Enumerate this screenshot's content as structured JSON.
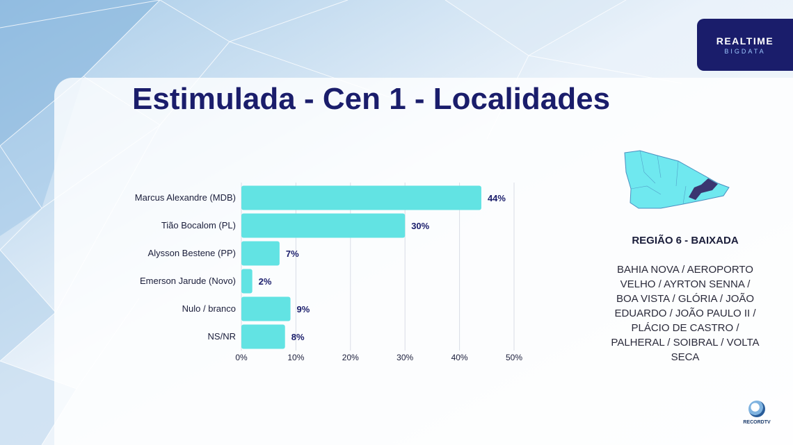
{
  "header": {
    "title": "Estimulada - Cen 1 - Localidades",
    "logo_line1": "REALTIME",
    "logo_line2": "BIGDATA"
  },
  "chart_data": {
    "type": "bar",
    "orientation": "horizontal",
    "categories": [
      "Marcus Alexandre (MDB)",
      "Tião Bocalom (PL)",
      "Alysson Bestene (PP)",
      "Emerson Jarude (Novo)",
      "Nulo / branco",
      "NS/NR"
    ],
    "values": [
      44,
      30,
      7,
      2,
      9,
      8
    ],
    "value_labels": [
      "44%",
      "30%",
      "7%",
      "2%",
      "9%",
      "8%"
    ],
    "xlim": [
      0,
      50
    ],
    "xticks": [
      "0%",
      "10%",
      "20%",
      "30%",
      "40%",
      "50%"
    ],
    "grid": true,
    "bar_color": "#62e3e3"
  },
  "region": {
    "title": "REGIÃO 6 - BAIXADA",
    "description": "BAHIA NOVA / AEROPORTO VELHO / AYRTON SENNA / BOA VISTA / GLÓRIA / JOÃO EDUARDO / JOÃO PAULO II / PLÁCIO DE CASTRO / PALHERAL / SOIBRAL / VOLTA SECA"
  },
  "footer": {
    "tv_logo_text": "RECORDTV"
  },
  "colors": {
    "title": "#1a1d6b",
    "bar": "#62e3e3",
    "value_label": "#1a1d6b",
    "map_fill": "#6fe8ef",
    "map_highlight": "#3a3670",
    "logo_bg": "#1a1d6b"
  }
}
